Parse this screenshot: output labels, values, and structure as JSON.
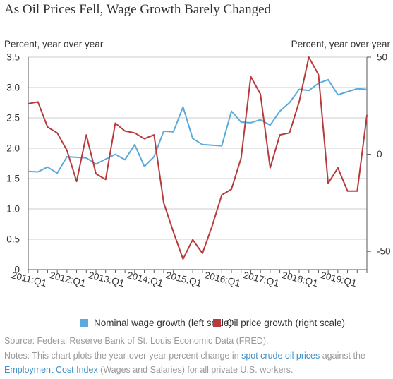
{
  "title": "As Oil Prices Fell, Wage Growth Barely Changed",
  "left_axis_title": "Percent, year over year",
  "right_axis_title": "Percent, year over year",
  "colors": {
    "wage": "#5aaadc",
    "oil": "#b83a3c",
    "grid": "#cccccc",
    "axis": "#555555",
    "text": "#333333",
    "note": "#9a9a9a",
    "link": "#3f8fc9"
  },
  "chart_data": {
    "type": "line",
    "x": [
      "2011:Q1",
      "2011:Q2",
      "2011:Q3",
      "2011:Q4",
      "2012:Q1",
      "2012:Q2",
      "2012:Q3",
      "2012:Q4",
      "2013:Q1",
      "2013:Q2",
      "2013:Q3",
      "2013:Q4",
      "2014:Q1",
      "2014:Q2",
      "2014:Q3",
      "2014:Q4",
      "2015:Q1",
      "2015:Q2",
      "2015:Q3",
      "2015:Q4",
      "2016:Q1",
      "2016:Q2",
      "2016:Q3",
      "2016:Q4",
      "2017:Q1",
      "2017:Q2",
      "2017:Q3",
      "2017:Q4",
      "2018:Q1",
      "2018:Q2",
      "2018:Q3",
      "2018:Q4",
      "2019:Q1",
      "2019:Q2",
      "2019:Q3",
      "2019:Q4"
    ],
    "x_tick_labels": [
      "2011:Q1",
      "2012:Q1",
      "2013:Q1",
      "2014:Q1",
      "2015:Q1",
      "2016:Q1",
      "2017:Q1",
      "2018:Q1",
      "2019:Q1"
    ],
    "left_ylim": [
      0,
      3.5
    ],
    "left_yticks": [
      "0",
      "0.5",
      "1.0",
      "1.5",
      "2.0",
      "2.5",
      "3.0",
      "3.5"
    ],
    "right_ylim": [
      -59.4,
      50
    ],
    "right_yticks": [
      {
        "value": 50,
        "label": "50"
      },
      {
        "value": 0,
        "label": "0"
      },
      {
        "value": -50,
        "label": "-50"
      }
    ],
    "grid": true,
    "legend_position": "bottom",
    "series": [
      {
        "name": "Nominal wage growth (left scale)",
        "axis": "left",
        "values": [
          1.62,
          1.61,
          1.69,
          1.59,
          1.86,
          1.85,
          1.84,
          1.74,
          1.82,
          1.9,
          1.81,
          2.06,
          1.7,
          1.86,
          2.28,
          2.27,
          2.68,
          2.16,
          2.06,
          2.05,
          2.04,
          2.61,
          2.43,
          2.42,
          2.47,
          2.38,
          2.61,
          2.75,
          2.97,
          2.95,
          3.07,
          3.13,
          2.88,
          2.93,
          2.98,
          2.97
        ]
      },
      {
        "name": "Oil price growth (right scale)",
        "axis": "right",
        "values": [
          26,
          27,
          14,
          11,
          2,
          -14,
          10,
          -10,
          -13,
          16,
          12,
          11,
          8,
          10,
          -25,
          -40,
          -54,
          -44,
          -51,
          -37,
          -21,
          -18,
          -2,
          40,
          31,
          -7,
          10,
          11,
          27,
          50,
          41,
          -15,
          -7,
          -19,
          -19,
          20
        ]
      }
    ]
  },
  "legend": [
    {
      "label": "Nominal wage growth (left scale)"
    },
    {
      "label": "Oil price growth (right scale)"
    }
  ],
  "footer": {
    "source": "Source: Federal Reserve Bank of St. Louis Economic Data (FRED).",
    "notes_line1_before": "Notes: This chart plots the year-over-year percent change in ",
    "notes_line1_link": "spot crude oil prices",
    "notes_line1_after": " against the",
    "notes_line2_link": "Employment Cost Index",
    "notes_line2_after": " (Wages and Salaries) for all private U.S. workers."
  }
}
